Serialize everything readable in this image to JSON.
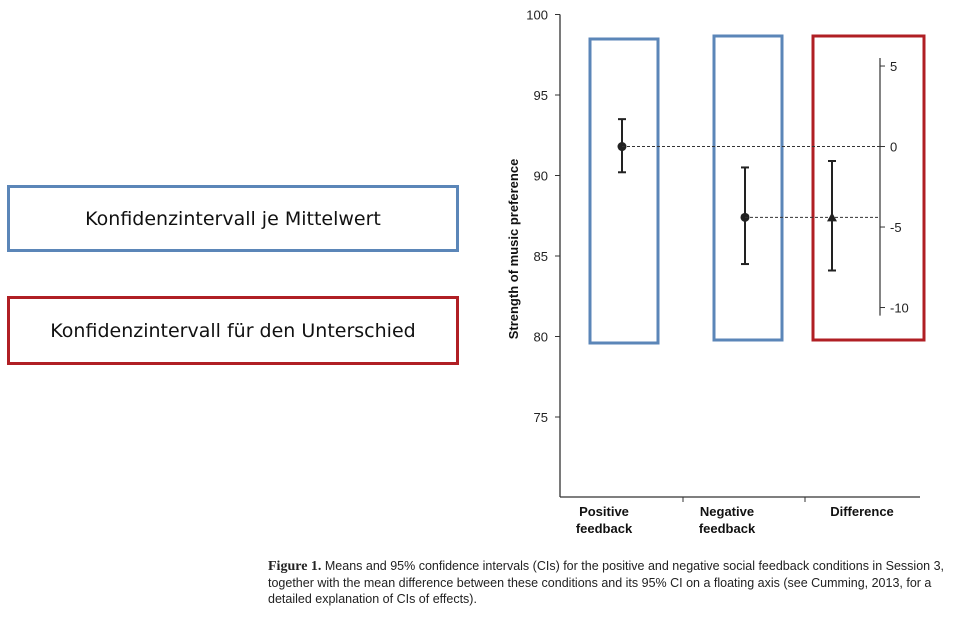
{
  "callouts": {
    "per_mean": "Konfidenzintervall je Mittelwert",
    "difference": "Konfidenzintervall für den Unterschied"
  },
  "colors": {
    "blue_box": "#5b86b8",
    "red_box": "#b01f24"
  },
  "chart_data": {
    "type": "scatter",
    "ylabel": "Strength of music preference",
    "ylim": [
      70,
      100
    ],
    "yticks": [
      75,
      80,
      85,
      90,
      95,
      100
    ],
    "categories": [
      "Positive feedback",
      "Negative feedback",
      "Difference"
    ],
    "category_labels": [
      [
        "Positive",
        "feedback"
      ],
      [
        "Negative",
        "feedback"
      ],
      [
        "Difference"
      ]
    ],
    "points": [
      {
        "category": "Positive feedback",
        "mean": 91.8,
        "ci_low": 90.2,
        "ci_high": 93.5,
        "marker": "circle"
      },
      {
        "category": "Negative feedback",
        "mean": 87.4,
        "ci_low": 84.5,
        "ci_high": 90.5,
        "marker": "circle"
      }
    ],
    "difference_axis": {
      "zero_at": 91.8,
      "ticks": [
        5,
        0,
        -5,
        -10
      ],
      "tick_labels": [
        "5",
        "0",
        "-5",
        "-10"
      ],
      "range": [
        -10.5,
        5.5
      ],
      "point": {
        "category": "Difference",
        "mean": -4.4,
        "ci_low": -7.7,
        "ci_high": -0.9,
        "marker": "triangle"
      }
    },
    "grid": false
  },
  "caption": {
    "label": "Figure 1.",
    "text": "Means and 95% confidence intervals (CIs) for the positive and negative social feedback conditions in Session 3, together with the mean difference between these conditions and its 95% CI on a floating axis (see Cumming, 2013, for a detailed explanation of CIs of effects)."
  }
}
